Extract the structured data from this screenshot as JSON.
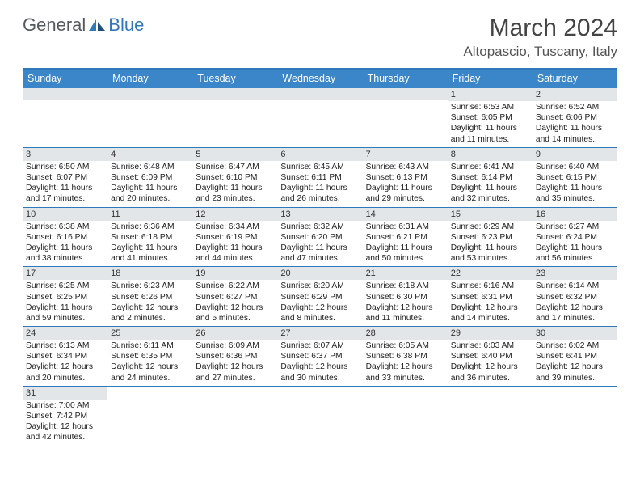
{
  "logo": {
    "text1": "General",
    "text2": "Blue"
  },
  "title": "March 2024",
  "location": "Altopascio, Tuscany, Italy",
  "day_headers": [
    "Sunday",
    "Monday",
    "Tuesday",
    "Wednesday",
    "Thursday",
    "Friday",
    "Saturday"
  ],
  "colors": {
    "header_bg": "#3b86c8",
    "header_border": "#2f79ba",
    "date_bg": "#e3e6e9",
    "logo_gray": "#555a5e",
    "logo_blue": "#2f79ba"
  },
  "weeks": [
    [
      {
        "empty": true
      },
      {
        "empty": true
      },
      {
        "empty": true
      },
      {
        "empty": true
      },
      {
        "empty": true
      },
      {
        "date": "1",
        "sunrise": "Sunrise: 6:53 AM",
        "sunset": "Sunset: 6:05 PM",
        "day1": "Daylight: 11 hours",
        "day2": "and 11 minutes."
      },
      {
        "date": "2",
        "sunrise": "Sunrise: 6:52 AM",
        "sunset": "Sunset: 6:06 PM",
        "day1": "Daylight: 11 hours",
        "day2": "and 14 minutes."
      }
    ],
    [
      {
        "date": "3",
        "sunrise": "Sunrise: 6:50 AM",
        "sunset": "Sunset: 6:07 PM",
        "day1": "Daylight: 11 hours",
        "day2": "and 17 minutes."
      },
      {
        "date": "4",
        "sunrise": "Sunrise: 6:48 AM",
        "sunset": "Sunset: 6:09 PM",
        "day1": "Daylight: 11 hours",
        "day2": "and 20 minutes."
      },
      {
        "date": "5",
        "sunrise": "Sunrise: 6:47 AM",
        "sunset": "Sunset: 6:10 PM",
        "day1": "Daylight: 11 hours",
        "day2": "and 23 minutes."
      },
      {
        "date": "6",
        "sunrise": "Sunrise: 6:45 AM",
        "sunset": "Sunset: 6:11 PM",
        "day1": "Daylight: 11 hours",
        "day2": "and 26 minutes."
      },
      {
        "date": "7",
        "sunrise": "Sunrise: 6:43 AM",
        "sunset": "Sunset: 6:13 PM",
        "day1": "Daylight: 11 hours",
        "day2": "and 29 minutes."
      },
      {
        "date": "8",
        "sunrise": "Sunrise: 6:41 AM",
        "sunset": "Sunset: 6:14 PM",
        "day1": "Daylight: 11 hours",
        "day2": "and 32 minutes."
      },
      {
        "date": "9",
        "sunrise": "Sunrise: 6:40 AM",
        "sunset": "Sunset: 6:15 PM",
        "day1": "Daylight: 11 hours",
        "day2": "and 35 minutes."
      }
    ],
    [
      {
        "date": "10",
        "sunrise": "Sunrise: 6:38 AM",
        "sunset": "Sunset: 6:16 PM",
        "day1": "Daylight: 11 hours",
        "day2": "and 38 minutes."
      },
      {
        "date": "11",
        "sunrise": "Sunrise: 6:36 AM",
        "sunset": "Sunset: 6:18 PM",
        "day1": "Daylight: 11 hours",
        "day2": "and 41 minutes."
      },
      {
        "date": "12",
        "sunrise": "Sunrise: 6:34 AM",
        "sunset": "Sunset: 6:19 PM",
        "day1": "Daylight: 11 hours",
        "day2": "and 44 minutes."
      },
      {
        "date": "13",
        "sunrise": "Sunrise: 6:32 AM",
        "sunset": "Sunset: 6:20 PM",
        "day1": "Daylight: 11 hours",
        "day2": "and 47 minutes."
      },
      {
        "date": "14",
        "sunrise": "Sunrise: 6:31 AM",
        "sunset": "Sunset: 6:21 PM",
        "day1": "Daylight: 11 hours",
        "day2": "and 50 minutes."
      },
      {
        "date": "15",
        "sunrise": "Sunrise: 6:29 AM",
        "sunset": "Sunset: 6:23 PM",
        "day1": "Daylight: 11 hours",
        "day2": "and 53 minutes."
      },
      {
        "date": "16",
        "sunrise": "Sunrise: 6:27 AM",
        "sunset": "Sunset: 6:24 PM",
        "day1": "Daylight: 11 hours",
        "day2": "and 56 minutes."
      }
    ],
    [
      {
        "date": "17",
        "sunrise": "Sunrise: 6:25 AM",
        "sunset": "Sunset: 6:25 PM",
        "day1": "Daylight: 11 hours",
        "day2": "and 59 minutes."
      },
      {
        "date": "18",
        "sunrise": "Sunrise: 6:23 AM",
        "sunset": "Sunset: 6:26 PM",
        "day1": "Daylight: 12 hours",
        "day2": "and 2 minutes."
      },
      {
        "date": "19",
        "sunrise": "Sunrise: 6:22 AM",
        "sunset": "Sunset: 6:27 PM",
        "day1": "Daylight: 12 hours",
        "day2": "and 5 minutes."
      },
      {
        "date": "20",
        "sunrise": "Sunrise: 6:20 AM",
        "sunset": "Sunset: 6:29 PM",
        "day1": "Daylight: 12 hours",
        "day2": "and 8 minutes."
      },
      {
        "date": "21",
        "sunrise": "Sunrise: 6:18 AM",
        "sunset": "Sunset: 6:30 PM",
        "day1": "Daylight: 12 hours",
        "day2": "and 11 minutes."
      },
      {
        "date": "22",
        "sunrise": "Sunrise: 6:16 AM",
        "sunset": "Sunset: 6:31 PM",
        "day1": "Daylight: 12 hours",
        "day2": "and 14 minutes."
      },
      {
        "date": "23",
        "sunrise": "Sunrise: 6:14 AM",
        "sunset": "Sunset: 6:32 PM",
        "day1": "Daylight: 12 hours",
        "day2": "and 17 minutes."
      }
    ],
    [
      {
        "date": "24",
        "sunrise": "Sunrise: 6:13 AM",
        "sunset": "Sunset: 6:34 PM",
        "day1": "Daylight: 12 hours",
        "day2": "and 20 minutes."
      },
      {
        "date": "25",
        "sunrise": "Sunrise: 6:11 AM",
        "sunset": "Sunset: 6:35 PM",
        "day1": "Daylight: 12 hours",
        "day2": "and 24 minutes."
      },
      {
        "date": "26",
        "sunrise": "Sunrise: 6:09 AM",
        "sunset": "Sunset: 6:36 PM",
        "day1": "Daylight: 12 hours",
        "day2": "and 27 minutes."
      },
      {
        "date": "27",
        "sunrise": "Sunrise: 6:07 AM",
        "sunset": "Sunset: 6:37 PM",
        "day1": "Daylight: 12 hours",
        "day2": "and 30 minutes."
      },
      {
        "date": "28",
        "sunrise": "Sunrise: 6:05 AM",
        "sunset": "Sunset: 6:38 PM",
        "day1": "Daylight: 12 hours",
        "day2": "and 33 minutes."
      },
      {
        "date": "29",
        "sunrise": "Sunrise: 6:03 AM",
        "sunset": "Sunset: 6:40 PM",
        "day1": "Daylight: 12 hours",
        "day2": "and 36 minutes."
      },
      {
        "date": "30",
        "sunrise": "Sunrise: 6:02 AM",
        "sunset": "Sunset: 6:41 PM",
        "day1": "Daylight: 12 hours",
        "day2": "and 39 minutes."
      }
    ],
    [
      {
        "date": "31",
        "sunrise": "Sunrise: 7:00 AM",
        "sunset": "Sunset: 7:42 PM",
        "day1": "Daylight: 12 hours",
        "day2": "and 42 minutes."
      },
      {
        "empty": true
      },
      {
        "empty": true
      },
      {
        "empty": true
      },
      {
        "empty": true
      },
      {
        "empty": true
      },
      {
        "empty": true
      }
    ]
  ]
}
